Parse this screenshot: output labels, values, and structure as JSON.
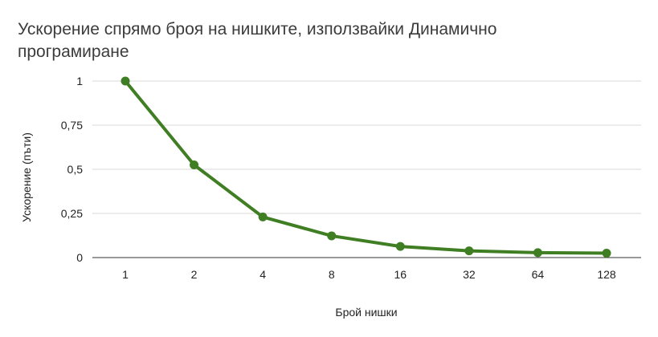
{
  "chart_data": {
    "type": "line",
    "title_line1": "Ускорение спрямо броя на нишките, използвайки Динамично",
    "title_line2": "програмиране",
    "xlabel": "Брой нишки",
    "ylabel": "Ускорение (пъти)",
    "categories": [
      "1",
      "2",
      "4",
      "8",
      "16",
      "32",
      "64",
      "128"
    ],
    "series": [
      {
        "values": [
          1.0,
          0.525,
          0.23,
          0.123,
          0.063,
          0.038,
          0.028,
          0.025
        ]
      }
    ],
    "y_ticks": [
      {
        "value": 0,
        "label": "0"
      },
      {
        "value": 0.25,
        "label": "0,25"
      },
      {
        "value": 0.5,
        "label": "0,5"
      },
      {
        "value": 0.75,
        "label": "0,75"
      },
      {
        "value": 1,
        "label": "1"
      }
    ],
    "ylim": [
      0,
      1
    ],
    "grid": true,
    "legend": "none",
    "line_color": "#3f7e22"
  }
}
